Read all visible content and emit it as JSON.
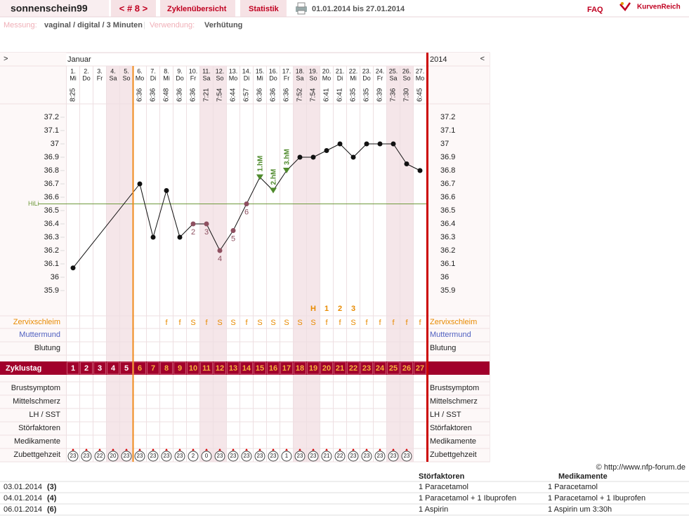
{
  "header": {
    "user": "sonnenschein99",
    "cycle_nav": "< # 8 >",
    "tabs": [
      "Zyklenübersicht",
      "Statistik"
    ],
    "period": "01.01.2014 bis 27.01.2014",
    "faq": "FAQ",
    "brand": "KurvenReich"
  },
  "settings": {
    "measurement_label": "Messung:",
    "measurement": "vaginal / digital / 3 Minuten",
    "separator": "|",
    "usage_label": "Verwendung:",
    "usage": "Verhütung"
  },
  "calendar": {
    "prev": ">",
    "month": "Januar",
    "year": "2014",
    "next": "<",
    "days": [
      "1.",
      "2.",
      "3.",
      "4.",
      "5.",
      "6.",
      "7.",
      "8.",
      "9.",
      "10.",
      "11.",
      "12.",
      "13.",
      "14.",
      "15.",
      "16.",
      "17.",
      "18.",
      "19.",
      "20.",
      "21.",
      "22.",
      "23.",
      "24.",
      "25.",
      "26.",
      "27."
    ],
    "weekdays": [
      "Mi",
      "Do",
      "Fr",
      "Sa",
      "So",
      "Mo",
      "Di",
      "Mi",
      "Do",
      "Fr",
      "Sa",
      "So",
      "Mo",
      "Di",
      "Mi",
      "Do",
      "Fr",
      "Sa",
      "So",
      "Mo",
      "Di",
      "Mi",
      "Do",
      "Fr",
      "Sa",
      "So",
      "Mo"
    ],
    "times": [
      "8:25",
      null,
      null,
      null,
      null,
      "6:36",
      "6:36",
      "6:48",
      "6:36",
      "6:36",
      "7:21",
      "7:54",
      "6:44",
      "6:57",
      "6:36",
      "6:36",
      "6:36",
      "7:52",
      "7:54",
      "6:41",
      "6:41",
      "6:35",
      "6:35",
      "6:39",
      "7:36",
      "7:30",
      "6:45"
    ]
  },
  "chart": {
    "yticks": [
      37.2,
      37.1,
      37,
      36.9,
      36.8,
      36.7,
      36.6,
      36.5,
      36.4,
      36.3,
      36.2,
      36.1,
      36,
      35.9
    ],
    "temperatures": [
      36.07,
      null,
      null,
      null,
      null,
      36.7,
      36.3,
      36.65,
      36.3,
      36.4,
      36.4,
      36.2,
      36.35,
      36.55,
      36.75,
      36.65,
      36.8,
      36.9,
      36.9,
      36.95,
      37.0,
      36.9,
      37.0,
      37.0,
      37.0,
      36.85,
      36.8
    ],
    "low_labels": [
      null,
      null,
      null,
      null,
      null,
      null,
      null,
      null,
      null,
      "2",
      "3",
      "4",
      "5",
      "6",
      null,
      null,
      null,
      null,
      null,
      null,
      null,
      null,
      null,
      null,
      null,
      null,
      null
    ],
    "high_markers": [
      null,
      null,
      null,
      null,
      null,
      null,
      null,
      null,
      null,
      null,
      null,
      null,
      null,
      null,
      "1.hM",
      "2.hM",
      "3.hM",
      null,
      null,
      null,
      null,
      null,
      null,
      null,
      null,
      null,
      null
    ],
    "hili": 36.55,
    "hili_label": "HiLi",
    "peak_row": [
      null,
      null,
      null,
      null,
      null,
      null,
      null,
      null,
      null,
      null,
      null,
      null,
      null,
      null,
      null,
      null,
      null,
      null,
      "H",
      "1",
      "2",
      "3",
      null,
      null,
      null,
      null,
      null
    ]
  },
  "rows": {
    "zervixschleim_label": "Zervixschleim",
    "zervixschleim": [
      null,
      null,
      null,
      null,
      null,
      null,
      null,
      "f",
      "f",
      "S",
      "f",
      "S",
      "S",
      "f",
      "S",
      "S",
      "S",
      "S",
      "S",
      "f",
      "f",
      "S",
      "f",
      "f",
      "f",
      "f",
      "f"
    ],
    "muttermund_label": "Muttermund",
    "blutung_label": "Blutung",
    "zyklustag_label": "Zyklustag",
    "zyklustag": [
      1,
      2,
      3,
      4,
      5,
      6,
      7,
      8,
      9,
      10,
      11,
      12,
      13,
      14,
      15,
      16,
      17,
      18,
      19,
      20,
      21,
      22,
      23,
      24,
      25,
      26,
      27
    ],
    "other_labels": [
      "Brustsymptom",
      "Mittelschmerz",
      "LH / SST",
      "Störfaktoren",
      "Medikamente"
    ],
    "zubettgehzeit_label": "Zubettgehzeit",
    "zubettgehzeit": [
      23,
      23,
      22,
      20,
      23,
      23,
      23,
      23,
      23,
      2,
      0,
      23,
      23,
      23,
      23,
      23,
      1,
      23,
      23,
      21,
      22,
      23,
      23,
      23,
      23,
      23,
      null
    ]
  },
  "footer": {
    "copyright": "© http://www.nfp-forum.de"
  },
  "table": {
    "headers": [
      "Störfaktoren",
      "Medikamente"
    ],
    "rows": [
      [
        "03.01.2014",
        "(3)",
        "1 Paracetamol",
        "1 Paracetamol"
      ],
      [
        "04.01.2014",
        "(4)",
        "1 Paracetamol + 1 Ibuprofen",
        "1 Paracetamol + 1 Ibuprofen"
      ],
      [
        "06.01.2014",
        "(6)",
        "1 Aspirin",
        "1 Aspirin um 3:30h"
      ]
    ]
  }
}
